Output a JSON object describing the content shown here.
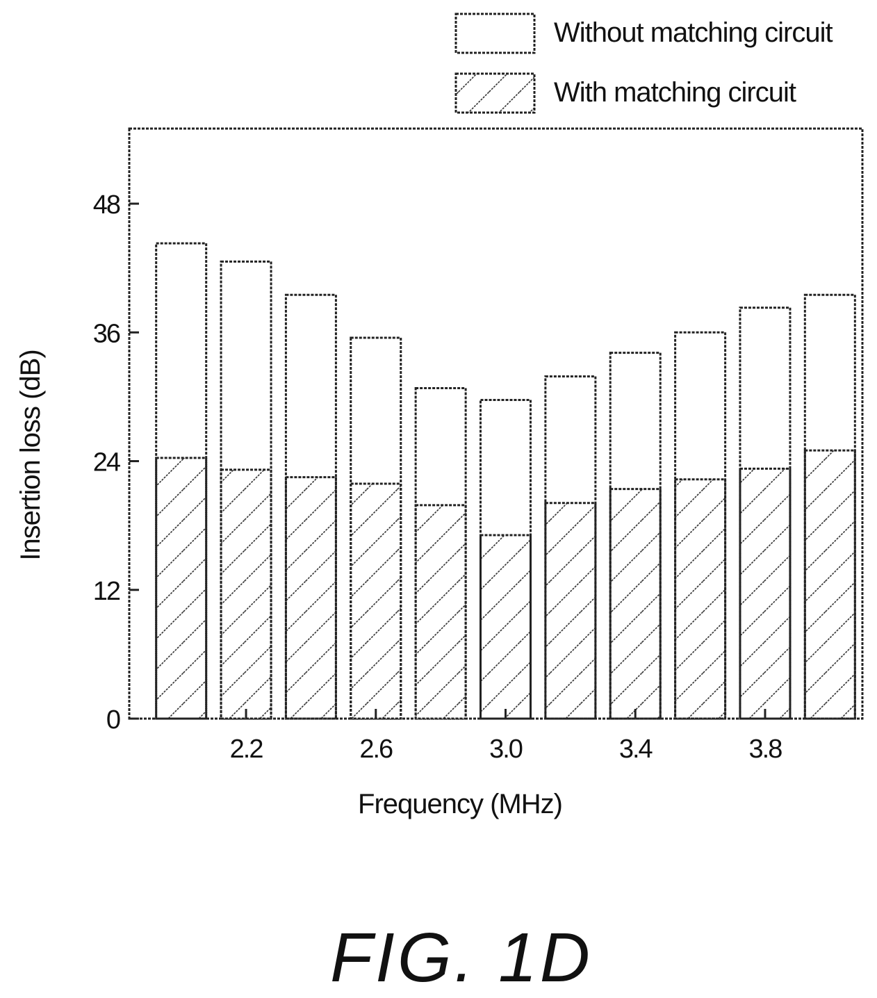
{
  "figure_caption": "FIG. 1D",
  "chart_data": {
    "type": "bar",
    "xlabel": "Frequency (MHz)",
    "ylabel": "Insertion loss (dB)",
    "ylim": [
      0,
      55
    ],
    "yticks": [
      0,
      12,
      24,
      36,
      48
    ],
    "ytick_labels": [
      "0",
      "12",
      "24",
      "36",
      "48"
    ],
    "xticks": [
      2.2,
      2.6,
      3.0,
      3.4,
      3.8
    ],
    "xtick_labels": [
      "2.2",
      "2.6",
      "3.0",
      "3.4",
      "3.8"
    ],
    "x": [
      2.0,
      2.2,
      2.4,
      2.6,
      2.8,
      3.0,
      3.2,
      3.4,
      3.6,
      3.8,
      4.0
    ],
    "xlim": [
      1.84,
      4.1
    ],
    "legend_placement": "top-right, above plot",
    "grid": false,
    "series": [
      {
        "name": "Without matching circuit",
        "fill": "white",
        "values": [
          44.3,
          42.6,
          39.5,
          35.5,
          30.8,
          29.7,
          31.9,
          34.1,
          36.0,
          38.3,
          39.5
        ]
      },
      {
        "name": "With matching circuit",
        "fill": "hatched",
        "values": [
          24.3,
          23.2,
          22.5,
          21.9,
          19.9,
          17.1,
          20.1,
          21.4,
          22.3,
          23.3,
          25.0
        ]
      }
    ],
    "colors": {
      "ink": "#222222",
      "background": "#ffffff"
    }
  }
}
